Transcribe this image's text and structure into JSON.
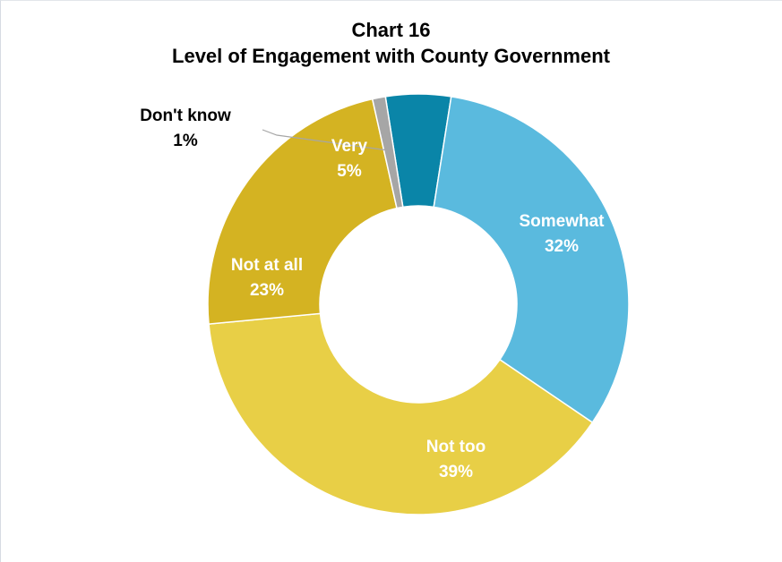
{
  "chart_data": {
    "type": "pie",
    "title": "Chart 16",
    "subtitle": "Level of Engagement with County Government",
    "donut": true,
    "slices": [
      {
        "label": "Very",
        "value": 5,
        "value_label": "5%",
        "color": "#0A85A8",
        "text_color": "#ffffff"
      },
      {
        "label": "Somewhat",
        "value": 32,
        "value_label": "32%",
        "color": "#5ABADE",
        "text_color": "#ffffff"
      },
      {
        "label": "Not too",
        "value": 39,
        "value_label": "39%",
        "color": "#E8CF46",
        "text_color": "#ffffff"
      },
      {
        "label": "Not at all",
        "value": 23,
        "value_label": "23%",
        "color": "#D4B322",
        "text_color": "#ffffff"
      },
      {
        "label": "Don't know",
        "value": 1,
        "value_label": "1%",
        "color": "#A6A6A6",
        "text_color": "#000000"
      }
    ]
  }
}
